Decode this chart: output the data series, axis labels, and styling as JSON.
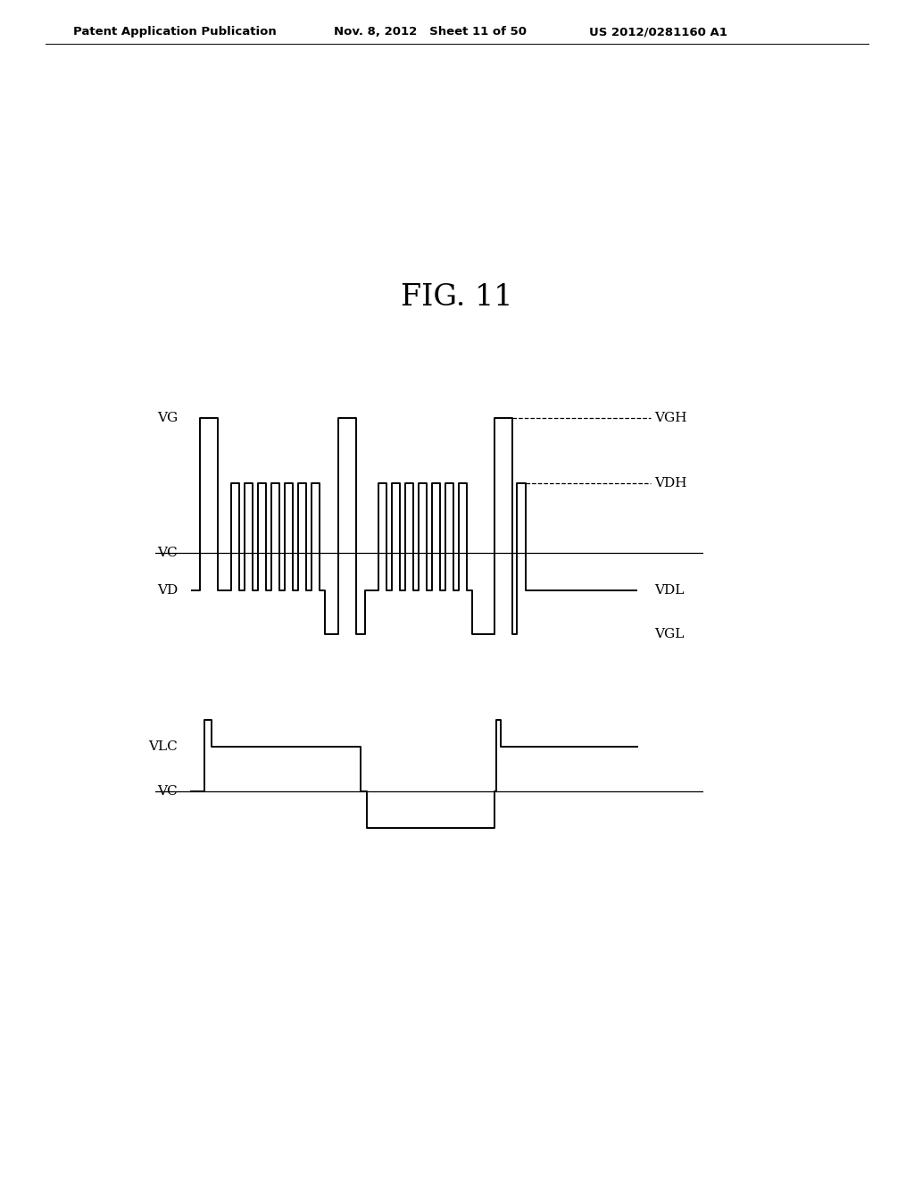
{
  "title": "FIG. 11",
  "header_left": "Patent Application Publication",
  "header_mid": "Nov. 8, 2012   Sheet 11 of 50",
  "header_right": "US 2012/0281160 A1",
  "bg_color": "#ffffff",
  "line_color": "#000000",
  "VGH": 4.0,
  "VDH": 2.8,
  "VC": 1.5,
  "VDL": 0.8,
  "VGL": 0.0,
  "VLC_high": 1.0,
  "VC2": 0.0,
  "VLC_low": -0.8
}
